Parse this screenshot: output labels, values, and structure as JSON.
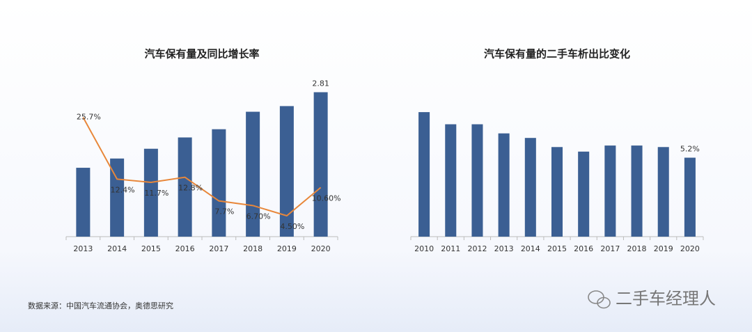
{
  "charts": [
    {
      "type": "bar_line",
      "title": "汽车保有量及同比增长率",
      "categories": [
        "2013",
        "2014",
        "2015",
        "2016",
        "2017",
        "2018",
        "2019",
        "2020"
      ],
      "series": [
        {
          "type": "bar",
          "color": "#3b5f93",
          "values": [
            1.34,
            1.52,
            1.71,
            1.93,
            2.09,
            2.43,
            2.54,
            2.81
          ],
          "value_labels": [
            null,
            null,
            null,
            null,
            null,
            null,
            null,
            "2.81"
          ]
        },
        {
          "type": "line",
          "axis": "y2",
          "color": "#e8873a",
          "values": [
            25.7,
            12.4,
            11.7,
            12.8,
            7.7,
            6.7,
            4.5,
            10.6
          ],
          "value_labels": [
            "25.7%",
            "12.4%",
            "11.7%",
            "12.8%",
            "7.7%",
            "6.70%",
            "4.50%",
            "10.60%"
          ]
        }
      ],
      "ylim": [
        0,
        3.25
      ],
      "y2lim": [
        0,
        36
      ]
    },
    {
      "type": "bar",
      "title": "汽车保有量的二手车析出比变化",
      "categories": [
        "2010",
        "2011",
        "2012",
        "2013",
        "2014",
        "2015",
        "2016",
        "2017",
        "2018",
        "2019",
        "2020"
      ],
      "series": [
        {
          "type": "bar",
          "color": "#3b5f93",
          "values": [
            8.2,
            7.4,
            7.4,
            6.8,
            6.5,
            5.9,
            5.6,
            6.0,
            6.0,
            5.9,
            5.2
          ],
          "value_labels": [
            null,
            null,
            null,
            null,
            null,
            null,
            null,
            null,
            null,
            null,
            "5.2%"
          ]
        }
      ],
      "ylim": [
        0,
        11
      ]
    }
  ],
  "source": "数据来源：中国汽车流通协会，奥德思研究",
  "watermark": "二手车经理人"
}
